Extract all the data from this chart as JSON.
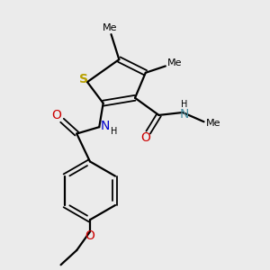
{
  "bg_color": "#ebebeb",
  "bond_color": "#000000",
  "S_color": "#b8a000",
  "N_color": "#0000cc",
  "O_color": "#cc0000",
  "N_amide_color": "#4a8fa0",
  "figsize": [
    3.0,
    3.0
  ],
  "dpi": 100,
  "xlim": [
    0,
    10
  ],
  "ylim": [
    0,
    10
  ]
}
